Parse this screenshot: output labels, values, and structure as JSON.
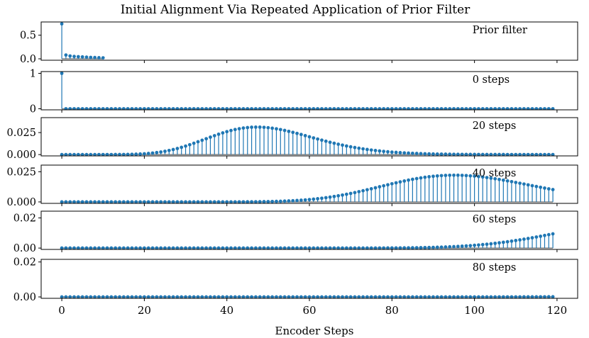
{
  "title": "Initial Alignment Via Repeated Application of Prior Filter",
  "xlabel": "Encoder Steps",
  "colors": {
    "stem": "#1f77b4",
    "baseline": "#808080",
    "frame": "#000000"
  },
  "chart_data": {
    "type": "stem",
    "title": "Initial Alignment Via Repeated Application of Prior Filter",
    "xlabel": "Encoder Steps",
    "xlim": [
      -5,
      125
    ],
    "xticks": [
      0,
      20,
      40,
      60,
      80,
      100,
      120
    ],
    "panels": [
      {
        "label": "Prior filter",
        "kind": "prior",
        "x": [
          0,
          1,
          2,
          3,
          4,
          5,
          6,
          7,
          8,
          9,
          10
        ],
        "values": [
          0.74,
          0.08,
          0.06,
          0.05,
          0.045,
          0.04,
          0.035,
          0.03,
          0.027,
          0.024,
          0.021
        ],
        "ylim": [
          -0.03,
          0.78
        ],
        "yticks": [
          0.0,
          0.5
        ],
        "ytick_labels": [
          "0.0",
          "0.5"
        ]
      },
      {
        "label": "0 steps",
        "kind": "impulse",
        "n": 120,
        "peak": 1.0,
        "ylim": [
          -0.03,
          1.05
        ],
        "yticks": [
          0,
          1
        ],
        "ytick_labels": [
          "0",
          "1"
        ]
      },
      {
        "label": "20 steps",
        "kind": "binomial",
        "steps": 20,
        "n": 120,
        "ylim": [
          -0.0015,
          0.042
        ],
        "yticks": [
          0.0,
          0.025
        ],
        "ytick_labels": [
          "0.000",
          "0.025"
        ]
      },
      {
        "label": "40 steps",
        "kind": "binomial",
        "steps": 40,
        "n": 120,
        "ylim": [
          -0.0012,
          0.0305
        ],
        "yticks": [
          0.0,
          0.025
        ],
        "ytick_labels": [
          "0.000",
          "0.025"
        ]
      },
      {
        "label": "60 steps",
        "kind": "binomial",
        "steps": 60,
        "n": 120,
        "ylim": [
          -0.0009,
          0.0245
        ],
        "yticks": [
          0.0,
          0.02
        ],
        "ytick_labels": [
          "0.00",
          "0.02"
        ]
      },
      {
        "label": "80 steps",
        "kind": "binomial",
        "steps": 80,
        "n": 120,
        "ylim": [
          -0.0008,
          0.0215
        ],
        "yticks": [
          0.0,
          0.02
        ],
        "ytick_labels": [
          "0.00",
          "0.02"
        ]
      }
    ]
  }
}
